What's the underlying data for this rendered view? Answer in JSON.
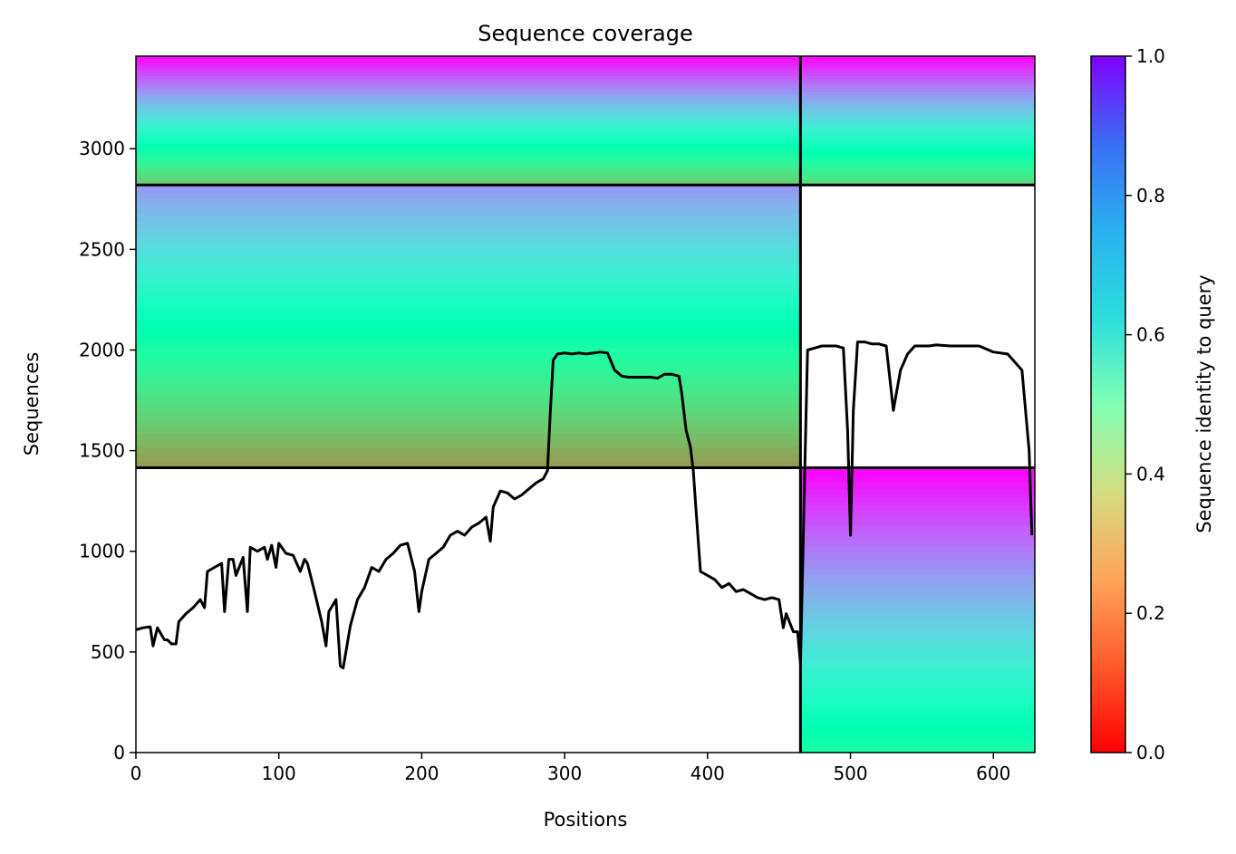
{
  "chart_data": {
    "type": "heatmap",
    "title": "Sequence coverage",
    "xlabel": "Positions",
    "ylabel": "Sequences",
    "xlim": [
      0,
      629
    ],
    "ylim": [
      0,
      3460
    ],
    "x_ticks": [
      "0",
      "100",
      "200",
      "300",
      "400",
      "500",
      "600"
    ],
    "x_tick_values": [
      0,
      100,
      200,
      300,
      400,
      500,
      600
    ],
    "y_ticks": [
      "0",
      "500",
      "1000",
      "1500",
      "2000",
      "2500",
      "3000"
    ],
    "y_tick_values": [
      0,
      500,
      1000,
      1500,
      2000,
      2500,
      3000
    ],
    "colorbar": {
      "label": "Sequence identity to query",
      "ticks": [
        "0.0",
        "0.2",
        "0.4",
        "0.6",
        "0.8",
        "1.0"
      ],
      "tick_values": [
        0,
        0.2,
        0.4,
        0.6,
        0.8,
        1.0
      ],
      "range": [
        0,
        1
      ],
      "colormap": "rainbow_r"
    },
    "grid": false,
    "chain_boundary_x": 465,
    "block_boundaries_y": [
      1415,
      2820
    ],
    "blocks": [
      {
        "x": [
          0,
          465
        ],
        "y": [
          2820,
          3460
        ],
        "identity_range": [
          0.28,
          1.0
        ],
        "covered_x": [
          0,
          465
        ]
      },
      {
        "x": [
          465,
          629
        ],
        "y": [
          2820,
          3460
        ],
        "identity_range": [
          0.32,
          1.0
        ],
        "covered_x": [
          465,
          629
        ]
      },
      {
        "x": [
          0,
          465
        ],
        "y": [
          1415,
          2820
        ],
        "identity_range": [
          0.2,
          0.8
        ],
        "covered_x": [
          0,
          465
        ]
      },
      {
        "x": [
          465,
          629
        ],
        "y": [
          0,
          1415
        ],
        "identity_range": [
          0.45,
          1.0
        ],
        "covered_x": [
          465,
          629
        ]
      }
    ],
    "coverage_line": {
      "color": "#000000",
      "x": [
        0,
        5,
        10,
        12,
        15,
        20,
        22,
        25,
        28,
        30,
        35,
        40,
        45,
        48,
        50,
        55,
        60,
        62,
        65,
        68,
        70,
        75,
        78,
        80,
        85,
        90,
        92,
        95,
        98,
        100,
        105,
        110,
        115,
        118,
        120,
        125,
        130,
        133,
        135,
        140,
        143,
        145,
        150,
        155,
        160,
        165,
        170,
        175,
        180,
        185,
        190,
        195,
        198,
        200,
        205,
        210,
        215,
        220,
        225,
        230,
        235,
        240,
        245,
        248,
        250,
        255,
        260,
        265,
        270,
        275,
        280,
        285,
        288,
        290,
        292,
        295,
        300,
        305,
        310,
        315,
        320,
        325,
        330,
        335,
        340,
        345,
        350,
        355,
        360,
        365,
        370,
        375,
        380,
        382,
        385,
        388,
        390,
        392,
        395,
        400,
        405,
        410,
        415,
        420,
        425,
        430,
        435,
        440,
        445,
        450,
        453,
        455,
        460,
        463,
        465,
        468,
        470,
        475,
        480,
        485,
        490,
        495,
        498,
        500,
        502,
        505,
        510,
        515,
        520,
        525,
        530,
        532,
        535,
        540,
        545,
        550,
        555,
        560,
        570,
        580,
        590,
        600,
        610,
        620,
        625,
        627,
        629
      ],
      "values": [
        610,
        620,
        625,
        530,
        620,
        560,
        560,
        540,
        540,
        650,
        690,
        720,
        760,
        720,
        900,
        920,
        940,
        700,
        960,
        960,
        880,
        970,
        700,
        1020,
        1000,
        1020,
        960,
        1030,
        920,
        1040,
        990,
        980,
        900,
        960,
        940,
        800,
        650,
        530,
        700,
        760,
        430,
        420,
        630,
        760,
        820,
        920,
        900,
        960,
        990,
        1030,
        1040,
        900,
        700,
        800,
        960,
        990,
        1020,
        1080,
        1100,
        1080,
        1120,
        1140,
        1170,
        1050,
        1220,
        1300,
        1290,
        1260,
        1280,
        1310,
        1340,
        1360,
        1400,
        1700,
        1950,
        1980,
        1985,
        1980,
        1985,
        1980,
        1985,
        1990,
        1985,
        1900,
        1870,
        1865,
        1865,
        1865,
        1865,
        1860,
        1880,
        1880,
        1870,
        1780,
        1600,
        1520,
        1400,
        1200,
        900,
        880,
        860,
        820,
        840,
        800,
        810,
        790,
        770,
        760,
        770,
        760,
        620,
        690,
        600,
        600,
        440,
        1400,
        2000,
        2010,
        2020,
        2020,
        2020,
        2010,
        1600,
        1080,
        1700,
        2040,
        2040,
        2030,
        2030,
        2020,
        1700,
        1780,
        1900,
        1980,
        2020,
        2020,
        2020,
        2025,
        2020,
        2020,
        2020,
        1990,
        1980,
        1900,
        1500,
        1080
      ]
    }
  }
}
